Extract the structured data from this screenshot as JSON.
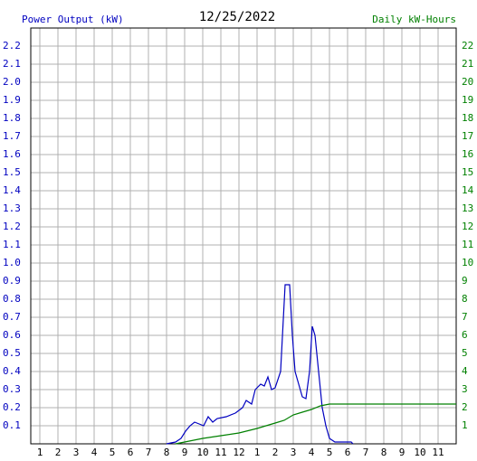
{
  "chart_data": {
    "type": "line",
    "title": "12/25/2022",
    "y_label": "Power Output (kW)",
    "y2_label": "Daily kW-Hours",
    "xlim": [
      0.5,
      24
    ],
    "xticks": [
      1,
      2,
      3,
      4,
      5,
      6,
      7,
      8,
      9,
      10,
      11,
      12,
      {
        "value": 13,
        "label": "1"
      },
      {
        "value": 14,
        "label": "2"
      },
      {
        "value": 15,
        "label": "3"
      },
      {
        "value": 16,
        "label": "4"
      },
      {
        "value": 17,
        "label": "5"
      },
      {
        "value": 18,
        "label": "6"
      },
      {
        "value": 19,
        "label": "7"
      },
      {
        "value": 20,
        "label": "8"
      },
      {
        "value": 21,
        "label": "9"
      },
      {
        "value": 22,
        "label": "10"
      },
      {
        "value": 23,
        "label": "11"
      }
    ],
    "ylim": [
      0,
      2.3
    ],
    "yticks": [
      0.1,
      0.2,
      0.3,
      0.4,
      0.5,
      0.6,
      0.7,
      0.8,
      0.9,
      {
        "value": 1,
        "label": "1.0"
      },
      1.1,
      1.2,
      1.3,
      1.4,
      1.5,
      1.6,
      1.7,
      1.8,
      1.9,
      {
        "value": 2,
        "label": "2.0"
      },
      2.1,
      2.2
    ],
    "y2lim": [
      0,
      23
    ],
    "y2ticks": [
      1,
      2,
      3,
      4,
      5,
      6,
      7,
      8,
      9,
      10,
      11,
      12,
      13,
      14,
      15,
      16,
      17,
      18,
      19,
      20,
      21,
      22
    ],
    "grid": true,
    "series": [
      {
        "name": "Power Output (kW)",
        "color": "#0000c0",
        "x": [
          8.0,
          8.5,
          8.8,
          9.05,
          9.3,
          9.55,
          9.8,
          10.05,
          10.3,
          10.55,
          10.8,
          11.3,
          11.8,
          12.2,
          12.4,
          12.7,
          12.9,
          13.2,
          13.4,
          13.6,
          13.8,
          14.0,
          14.3,
          14.55,
          14.8,
          14.95,
          15.1,
          15.3,
          15.5,
          15.7,
          15.9,
          16.05,
          16.2,
          16.4,
          16.6,
          16.8,
          17.0,
          17.3,
          18.2,
          18.3
        ],
        "values": [
          0,
          0.01,
          0.03,
          0.07,
          0.1,
          0.12,
          0.11,
          0.1,
          0.15,
          0.12,
          0.14,
          0.15,
          0.17,
          0.2,
          0.24,
          0.22,
          0.3,
          0.33,
          0.32,
          0.37,
          0.3,
          0.31,
          0.4,
          0.88,
          0.88,
          0.6,
          0.4,
          0.33,
          0.26,
          0.25,
          0.4,
          0.65,
          0.6,
          0.4,
          0.2,
          0.1,
          0.03,
          0.01,
          0.01,
          0
        ]
      },
      {
        "name": "Daily kW-Hours",
        "color": "#008000",
        "axis": "y2",
        "x": [
          8.5,
          10,
          11,
          12,
          13,
          13.5,
          14,
          14.5,
          15,
          15.5,
          16,
          16.5,
          17,
          18,
          20,
          22,
          24
        ],
        "values": [
          0,
          0.3,
          0.45,
          0.6,
          0.85,
          1.0,
          1.15,
          1.3,
          1.6,
          1.75,
          1.9,
          2.1,
          2.2,
          2.2,
          2.2,
          2.2,
          2.2
        ]
      }
    ]
  }
}
